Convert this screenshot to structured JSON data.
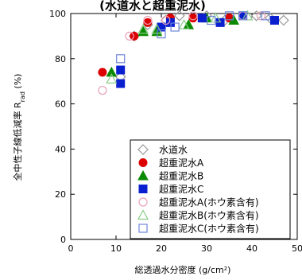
{
  "chart_data": {
    "type": "scatter",
    "title": "(水道水と超重泥水)",
    "xlabel": "総透過水分密度 (g/cm²)",
    "ylabel": "全中性子線低減率 R_rad (%)",
    "xlim": [
      0,
      50
    ],
    "ylim": [
      0,
      100
    ],
    "xticks": [
      0,
      10,
      20,
      30,
      40,
      50
    ],
    "yticks": [
      0,
      20,
      40,
      60,
      80,
      100
    ],
    "grid": false,
    "legend_position": "bottom-right",
    "series": [
      {
        "name": "水道水",
        "marker": "diamond",
        "filled": false,
        "color": "#999999",
        "points": [
          [
            11,
            72
          ],
          [
            14,
            90
          ],
          [
            17,
            95
          ],
          [
            21,
            97
          ],
          [
            24,
            99
          ],
          [
            30,
            99
          ],
          [
            34,
            97
          ],
          [
            41,
            99
          ],
          [
            44,
            98
          ],
          [
            47,
            97
          ]
        ]
      },
      {
        "name": "超重泥水A",
        "marker": "circle",
        "filled": true,
        "color": "#dd0000",
        "points": [
          [
            7,
            74
          ],
          [
            14,
            90
          ],
          [
            17,
            96
          ],
          [
            22,
            98
          ],
          [
            27,
            98
          ],
          [
            35,
            98
          ]
        ]
      },
      {
        "name": "超重泥水B",
        "marker": "triangle",
        "filled": true,
        "color": "#0a8a00",
        "points": [
          [
            9,
            74
          ],
          [
            16,
            92
          ],
          [
            19,
            92
          ],
          [
            26,
            95
          ],
          [
            30,
            98
          ],
          [
            36,
            97
          ]
        ]
      },
      {
        "name": "超重泥水C",
        "marker": "square",
        "filled": true,
        "color": "#0a1fd0",
        "points": [
          [
            11,
            69
          ],
          [
            11,
            75
          ],
          [
            20,
            94
          ],
          [
            22,
            96
          ],
          [
            29,
            98
          ],
          [
            33,
            96
          ],
          [
            38,
            99
          ],
          [
            45,
            97
          ]
        ]
      },
      {
        "name": "超重泥水A(ホウ素含有)",
        "marker": "circle",
        "filled": false,
        "color": "#e8a0b8",
        "points": [
          [
            7,
            66
          ],
          [
            13,
            90
          ],
          [
            17,
            97
          ],
          [
            21,
            97
          ],
          [
            27,
            99
          ],
          [
            38,
            99
          ],
          [
            42,
            99
          ]
        ]
      },
      {
        "name": "超重泥水B(ホウ素含有)",
        "marker": "triangle",
        "filled": false,
        "color": "#88cc88",
        "points": [
          [
            9,
            71
          ],
          [
            16,
            93
          ],
          [
            19,
            93
          ],
          [
            25,
            95
          ],
          [
            32,
            98
          ],
          [
            39,
            99
          ]
        ]
      },
      {
        "name": "超重泥水C(ホウ素含有)",
        "marker": "square",
        "filled": false,
        "color": "#6f86d8",
        "points": [
          [
            11,
            80
          ],
          [
            20,
            91
          ],
          [
            23,
            94
          ],
          [
            31,
            97
          ],
          [
            35,
            99
          ],
          [
            38,
            99
          ],
          [
            43,
            99
          ]
        ]
      }
    ]
  }
}
